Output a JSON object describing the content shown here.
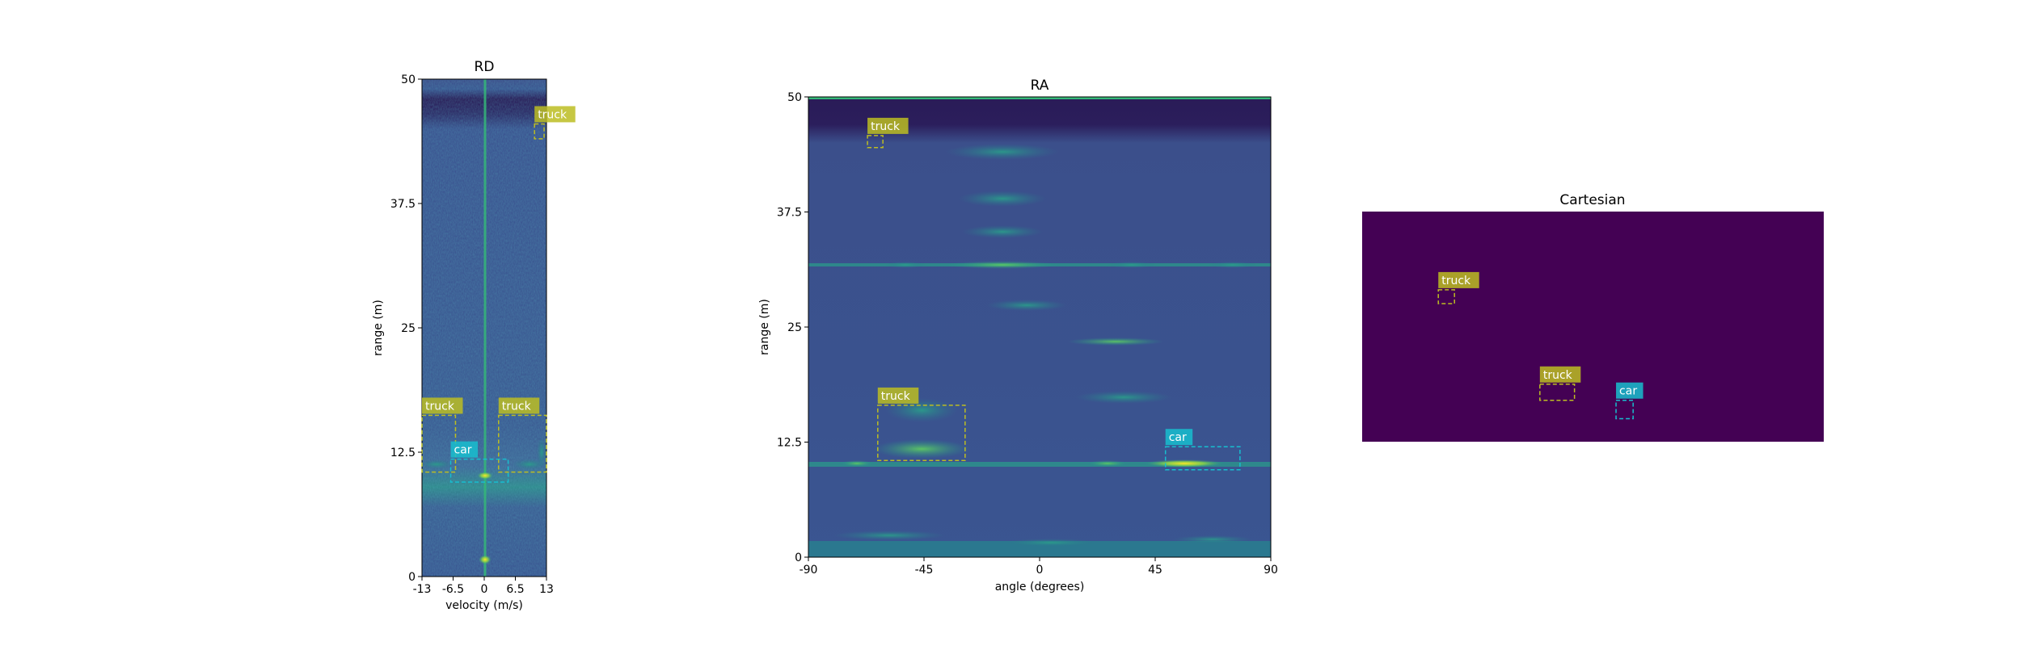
{
  "colors": {
    "bg_dark": "#2c1f5e",
    "bg_mid": "#3b528b",
    "bg_teal": "#21918c",
    "accent_green": "#5ec962",
    "accent_yellow": "#fde725",
    "cartesian_fill": "#440154",
    "truck_box": "#bcbd22",
    "car_box": "#17becf"
  },
  "chart_data": [
    {
      "type": "heatmap",
      "title": "RD",
      "xlabel": "velocity (m/s)",
      "ylabel": "range (m)",
      "xlim": [
        -13,
        13
      ],
      "ylim": [
        0,
        50
      ],
      "xticks": [
        "-13",
        "-6.5",
        "0",
        "6.5",
        "13"
      ],
      "yticks": [
        "0",
        "12.5",
        "25",
        "37.5",
        "50"
      ],
      "boxes": [
        {
          "label": "truck",
          "xmin": -13,
          "xmax": -6,
          "ymin": 10.5,
          "ymax": 16.2
        },
        {
          "label": "truck",
          "xmin": 3,
          "xmax": 13,
          "ymin": 10.5,
          "ymax": 16.2
        },
        {
          "label": "car",
          "xmin": -7,
          "xmax": 5,
          "ymin": 9.5,
          "ymax": 11.8
        },
        {
          "label": "truck",
          "xmin": 10.5,
          "xmax": 12.5,
          "ymin": 44,
          "ymax": 45.5
        }
      ]
    },
    {
      "type": "heatmap",
      "title": "RA",
      "xlabel": "angle (degrees)",
      "ylabel": "range (m)",
      "xlim": [
        -90,
        90
      ],
      "ylim": [
        0,
        50
      ],
      "xticks": [
        "-90",
        "-45",
        "0",
        "45",
        "90"
      ],
      "yticks": [
        "0",
        "12.5",
        "25",
        "37.5",
        "50"
      ],
      "boxes": [
        {
          "label": "truck",
          "xmin": -67,
          "xmax": -61,
          "ymin": 44.5,
          "ymax": 45.8
        },
        {
          "label": "truck",
          "xmin": -63,
          "xmax": -29,
          "ymin": 10.5,
          "ymax": 16.5
        },
        {
          "label": "car",
          "xmin": 49,
          "xmax": 78,
          "ymin": 9.5,
          "ymax": 12
        }
      ]
    },
    {
      "type": "heatmap",
      "title": "Cartesian",
      "boxes": [
        {
          "label": "truck",
          "xmin": 0.165,
          "xmax": 0.2,
          "ymin": 0.6,
          "ymax": 0.66
        },
        {
          "label": "truck",
          "xmin": 0.385,
          "xmax": 0.46,
          "ymin": 0.18,
          "ymax": 0.25
        },
        {
          "label": "car",
          "xmin": 0.55,
          "xmax": 0.587,
          "ymin": 0.1,
          "ymax": 0.18
        }
      ]
    }
  ]
}
